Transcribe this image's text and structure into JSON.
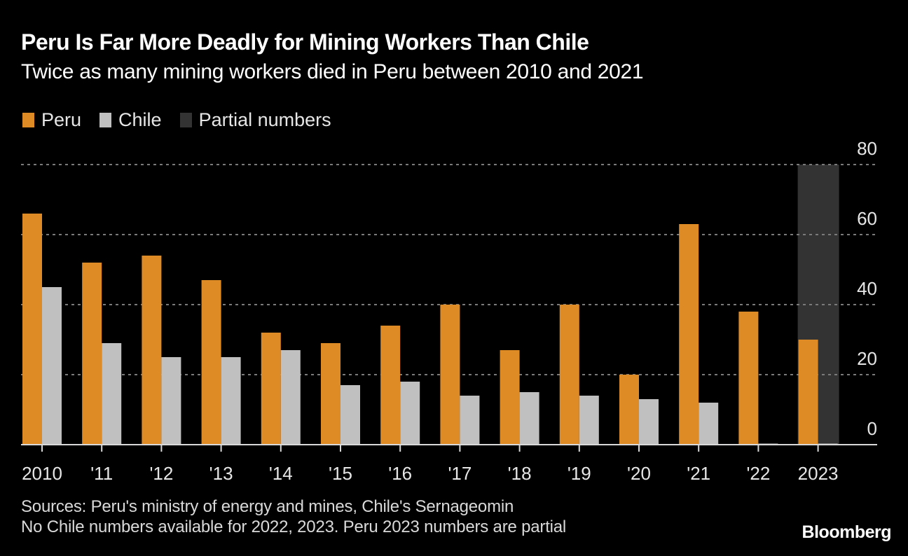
{
  "chart_data": {
    "type": "bar",
    "title": "Peru Is Far More Deadly for Mining Workers Than Chile",
    "subtitle": "Twice as many mining workers died in Peru between 2010 and 2021",
    "categories": [
      "2010",
      "'11",
      "'12",
      "'13",
      "'14",
      "'15",
      "'16",
      "'17",
      "'18",
      "'19",
      "'20",
      "'21",
      "'22",
      "2023"
    ],
    "series": [
      {
        "name": "Peru",
        "color": "#de8a25",
        "values": [
          66,
          52,
          54,
          47,
          32,
          29,
          34,
          40,
          27,
          40,
          20,
          63,
          38,
          30
        ]
      },
      {
        "name": "Chile",
        "color": "#c0c0c0",
        "values": [
          45,
          29,
          25,
          25,
          27,
          17,
          18,
          14,
          15,
          14,
          13,
          12,
          null,
          null
        ]
      }
    ],
    "highlight": {
      "name": "Partial numbers",
      "color": "#333333",
      "category": "2023"
    },
    "legend": [
      {
        "label": "Peru",
        "color": "#de8a25"
      },
      {
        "label": "Chile",
        "color": "#c0c0c0"
      },
      {
        "label": "Partial numbers",
        "color": "#333333"
      }
    ],
    "xlabel": "",
    "ylabel": "",
    "ylim": [
      0,
      80
    ],
    "yticks": [
      0,
      20,
      40,
      60,
      80
    ],
    "grid": true,
    "y_axis_side": "right",
    "legend_position": "top-left"
  },
  "footnotes": {
    "sources": "Sources: Peru's ministry of energy and mines, Chile's Sernageomin",
    "note": "No Chile numbers available for 2022, 2023. Peru 2023 numbers are partial"
  },
  "brand": "Bloomberg"
}
